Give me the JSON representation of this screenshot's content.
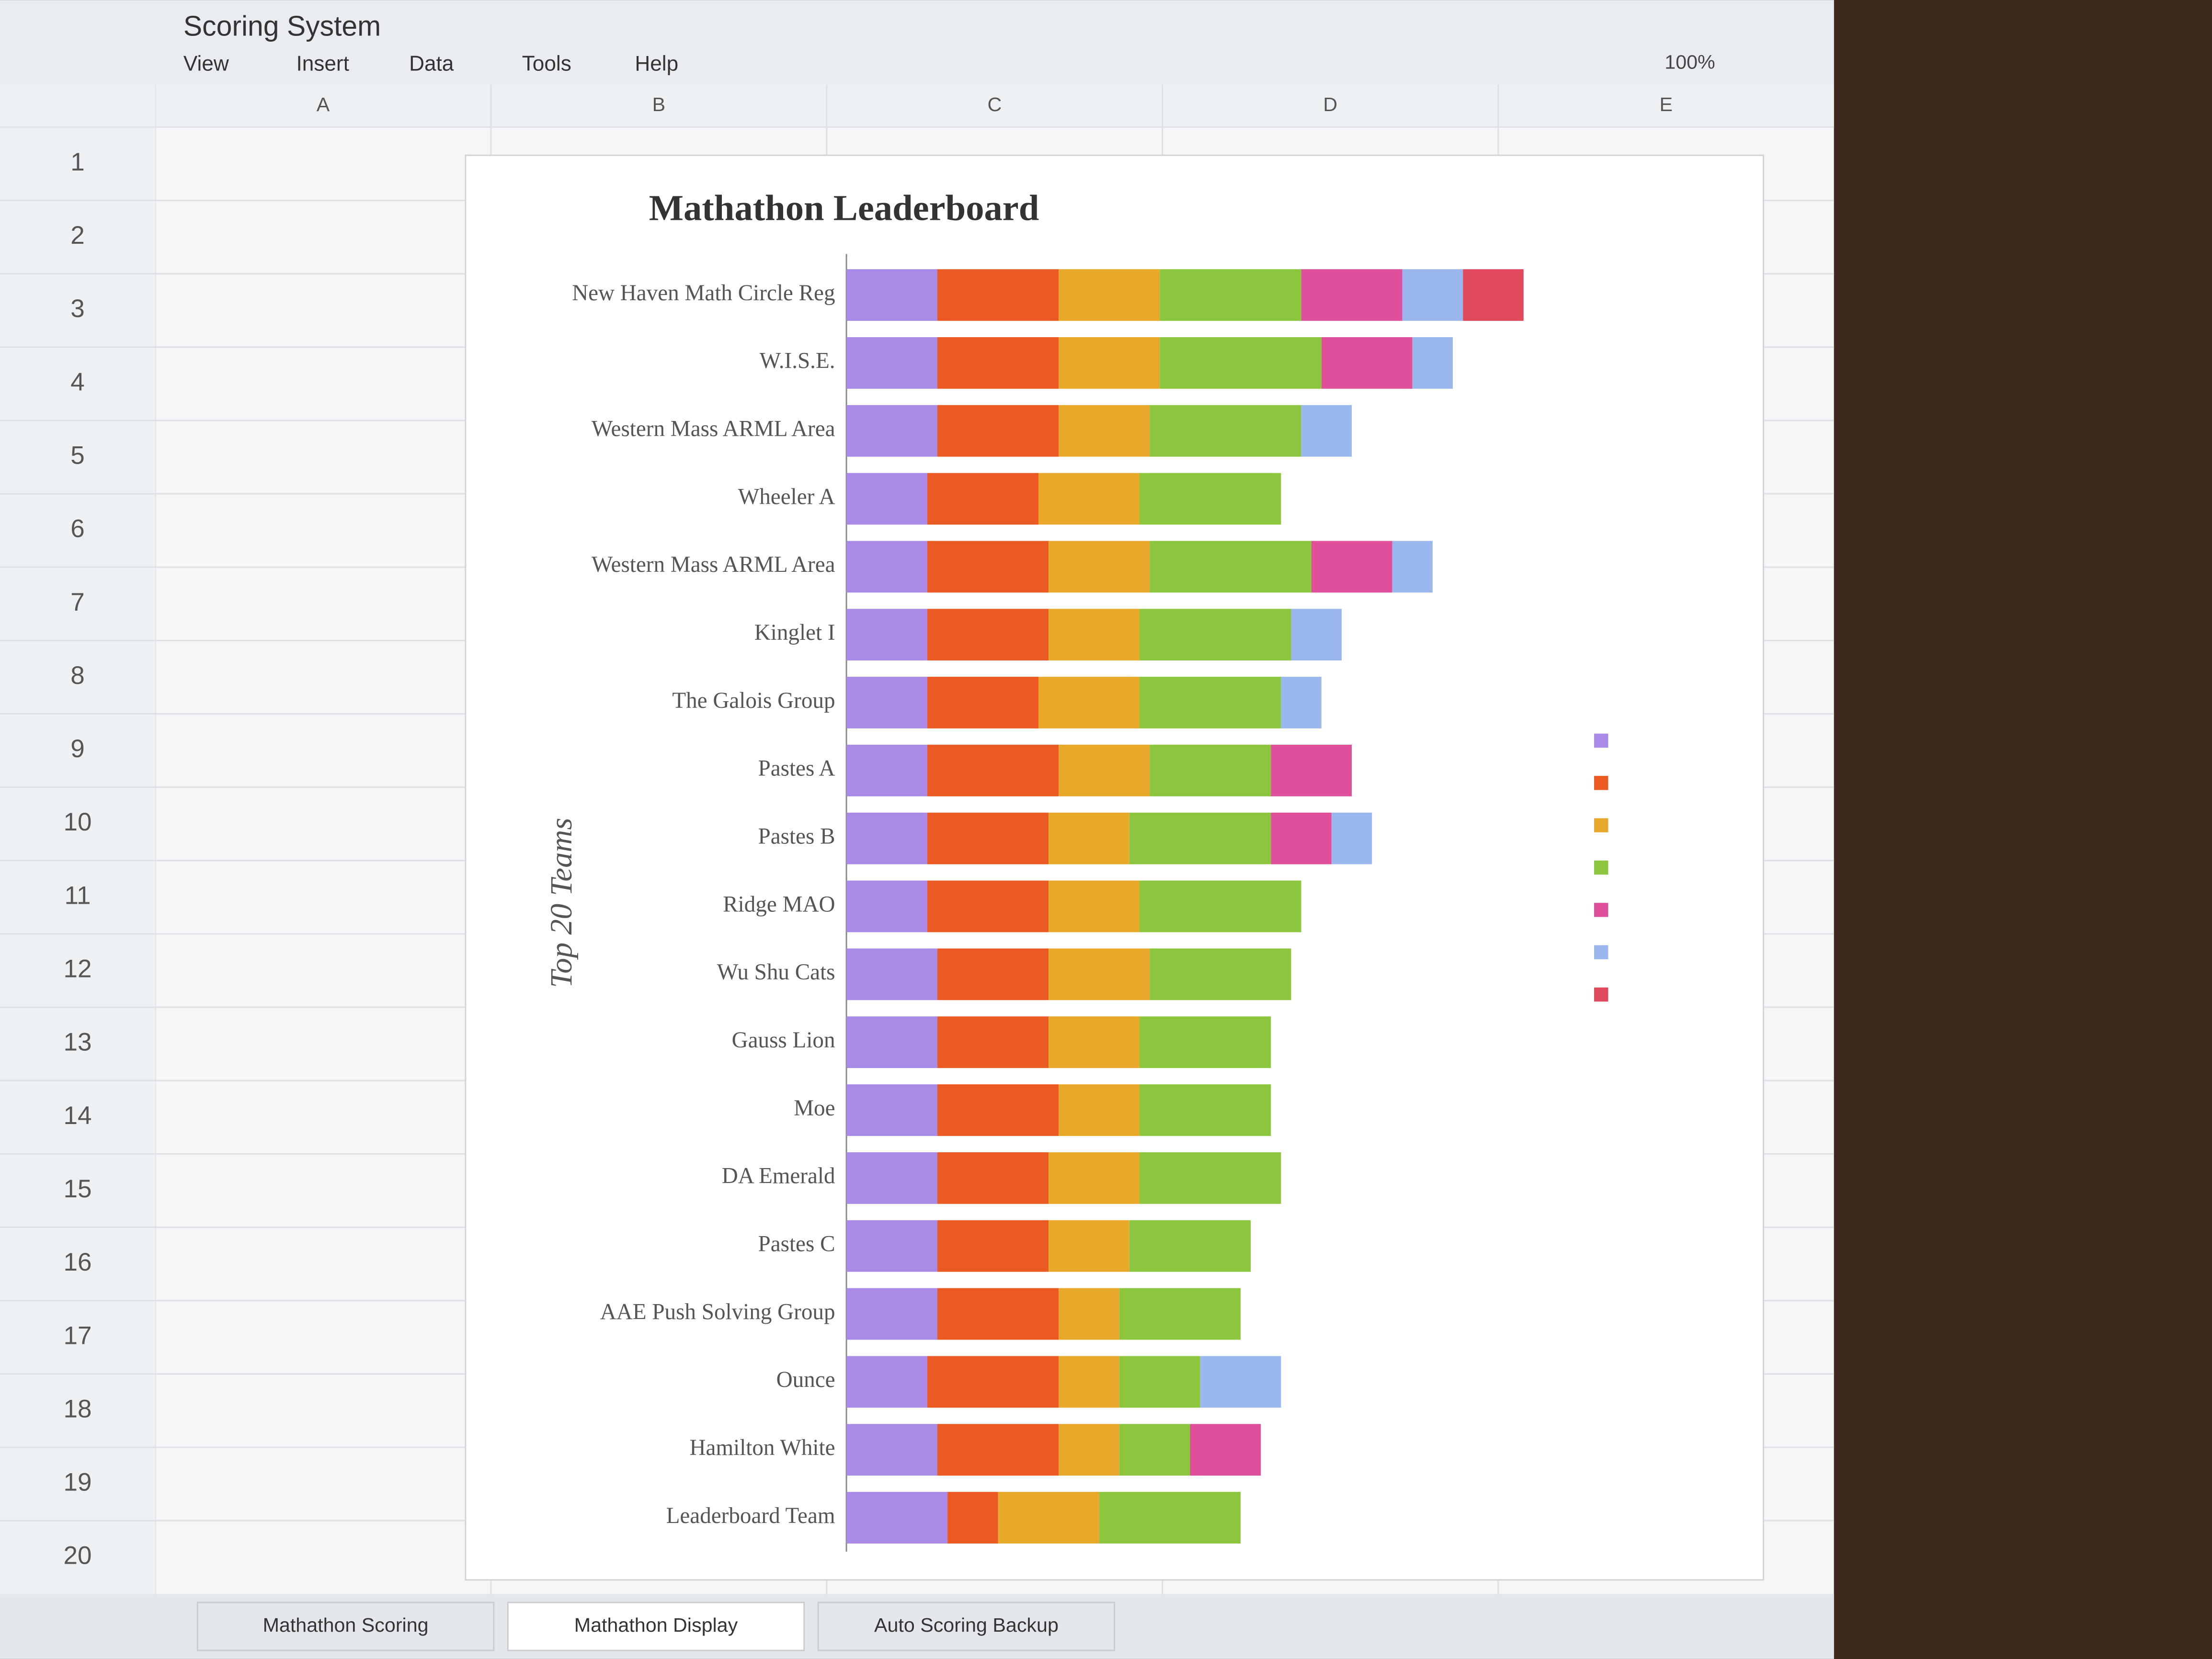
{
  "spreadsheet": {
    "title": "Scoring System",
    "menu": [
      "View",
      "Insert",
      "Data",
      "Tools",
      "Help"
    ],
    "zoom": "100%",
    "column_headers": [
      "A",
      "B",
      "C",
      "D",
      "E"
    ],
    "row_numbers": [
      1,
      2,
      3,
      4,
      5,
      6,
      7,
      8,
      9,
      10,
      11,
      12,
      13,
      14,
      15,
      16,
      17,
      18,
      19,
      20
    ],
    "tabs": [
      "Mathathon Scoring",
      "Mathathon Display",
      "Auto Scoring Backup"
    ]
  },
  "chart_data": {
    "type": "stacked-bar",
    "title": "Mathathon Leaderboard",
    "y_label": "Top 20 Teams",
    "categories": [
      "New Haven Math Circle Reg",
      "W.I.S.E.",
      "Western Mass ARML Area",
      "Wheeler A",
      "Western Mass ARML Area",
      "Kinglet I",
      "The Galois Group",
      "Pastes A",
      "Pastes B",
      "Ridge MAO",
      "Wu Shu Cats",
      "Gauss Lion",
      "Moe",
      "DA Emerald",
      "Pastes C",
      "AAE Push Solving Group",
      "Ounce",
      "Hamilton White",
      "Leaderboard Team"
    ],
    "series": [
      {
        "color": "#a98ae6",
        "values": [
          9,
          9,
          9,
          8,
          8,
          8,
          8,
          8,
          8,
          8,
          9,
          9,
          9,
          9,
          9,
          9,
          8,
          9,
          10
        ]
      },
      {
        "color": "#ec5a24",
        "values": [
          12,
          12,
          12,
          11,
          12,
          12,
          11,
          13,
          12,
          12,
          11,
          11,
          12,
          11,
          11,
          12,
          13,
          12,
          5
        ]
      },
      {
        "color": "#e8a92a",
        "values": [
          10,
          10,
          9,
          10,
          10,
          9,
          10,
          9,
          8,
          9,
          10,
          9,
          8,
          9,
          8,
          6,
          6,
          6,
          10
        ]
      },
      {
        "color": "#8cc63f",
        "values": [
          14,
          16,
          15,
          14,
          16,
          15,
          14,
          12,
          14,
          16,
          14,
          13,
          13,
          14,
          12,
          12,
          8,
          7,
          14
        ]
      },
      {
        "color": "#e0509a",
        "values": [
          10,
          9,
          0,
          0,
          8,
          0,
          0,
          8,
          6,
          0,
          0,
          0,
          0,
          0,
          0,
          0,
          0,
          7,
          0
        ]
      },
      {
        "color": "#9bb8ee",
        "values": [
          6,
          4,
          5,
          0,
          4,
          5,
          4,
          0,
          4,
          0,
          0,
          0,
          0,
          0,
          0,
          0,
          8,
          0,
          0
        ]
      },
      {
        "color": "#e04a5c",
        "values": [
          6,
          0,
          0,
          0,
          0,
          0,
          0,
          0,
          0,
          0,
          0,
          0,
          0,
          0,
          0,
          0,
          0,
          0,
          0
        ]
      }
    ]
  }
}
